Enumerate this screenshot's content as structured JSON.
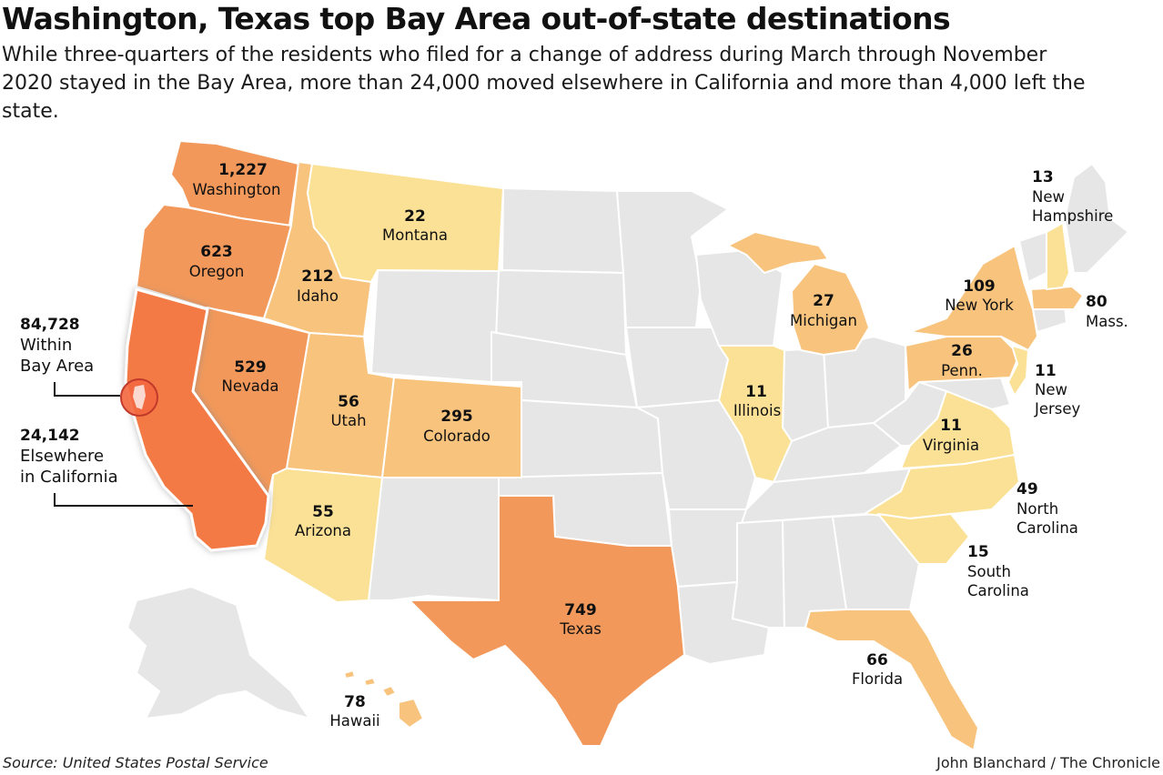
{
  "title": "Washington, Texas top Bay Area out-of-state destinations",
  "subtitle": "While three-quarters of the residents who filed for a change of address during March through November 2020 stayed in the Bay Area, more than 24,000 moved elsewhere in California and more than 4,000 left the state.",
  "source": "Source: United States Postal Service",
  "credit": "John Blanchard / The Chronicle",
  "colors": {
    "california": "#f47a45",
    "level_high": "#f2985a",
    "level_mid": "#f7c37d",
    "level_low": "#fbe196",
    "no_data": "#e6e6e6",
    "border": "#ffffff"
  },
  "california": {
    "within_bay_area": {
      "value": "84,728",
      "line1": "Within",
      "line2": "Bay Area"
    },
    "elsewhere": {
      "value": "24,142",
      "line1": "Elsewhere",
      "line2": "in California"
    }
  },
  "states": [
    {
      "key": "wa",
      "name": "Washington",
      "value": "1,227",
      "count": 1227
    },
    {
      "key": "or",
      "name": "Oregon",
      "value": "623",
      "count": 623
    },
    {
      "key": "id",
      "name": "Idaho",
      "value": "212",
      "count": 212
    },
    {
      "key": "mt",
      "name": "Montana",
      "value": "22",
      "count": 22
    },
    {
      "key": "nv",
      "name": "Nevada",
      "value": "529",
      "count": 529
    },
    {
      "key": "ut",
      "name": "Utah",
      "value": "56",
      "count": 56
    },
    {
      "key": "co",
      "name": "Colorado",
      "value": "295",
      "count": 295
    },
    {
      "key": "az",
      "name": "Arizona",
      "value": "55",
      "count": 55
    },
    {
      "key": "tx",
      "name": "Texas",
      "value": "749",
      "count": 749
    },
    {
      "key": "il",
      "name": "Illinois",
      "value": "11",
      "count": 11
    },
    {
      "key": "mi",
      "name": "Michigan",
      "value": "27",
      "count": 27
    },
    {
      "key": "ny",
      "name": "New York",
      "value": "109",
      "count": 109
    },
    {
      "key": "pa",
      "name": "Penn.",
      "value": "26",
      "count": 26
    },
    {
      "key": "ma",
      "name": "Mass.",
      "value": "80",
      "count": 80
    },
    {
      "key": "nh",
      "name": "New Hampshire",
      "line1": "New",
      "line2": "Hampshire",
      "value": "13",
      "count": 13
    },
    {
      "key": "nj",
      "name": "New Jersey",
      "line1": "New",
      "line2": "Jersey",
      "value": "11",
      "count": 11
    },
    {
      "key": "va",
      "name": "Virginia",
      "value": "11",
      "count": 11
    },
    {
      "key": "nc",
      "name": "North Carolina",
      "line1": "North",
      "line2": "Carolina",
      "value": "49",
      "count": 49
    },
    {
      "key": "sc",
      "name": "South Carolina",
      "line1": "South",
      "line2": "Carolina",
      "value": "15",
      "count": 15
    },
    {
      "key": "fl",
      "name": "Florida",
      "value": "66",
      "count": 66
    },
    {
      "key": "hi",
      "name": "Hawaii",
      "value": "78",
      "count": 78
    }
  ]
}
